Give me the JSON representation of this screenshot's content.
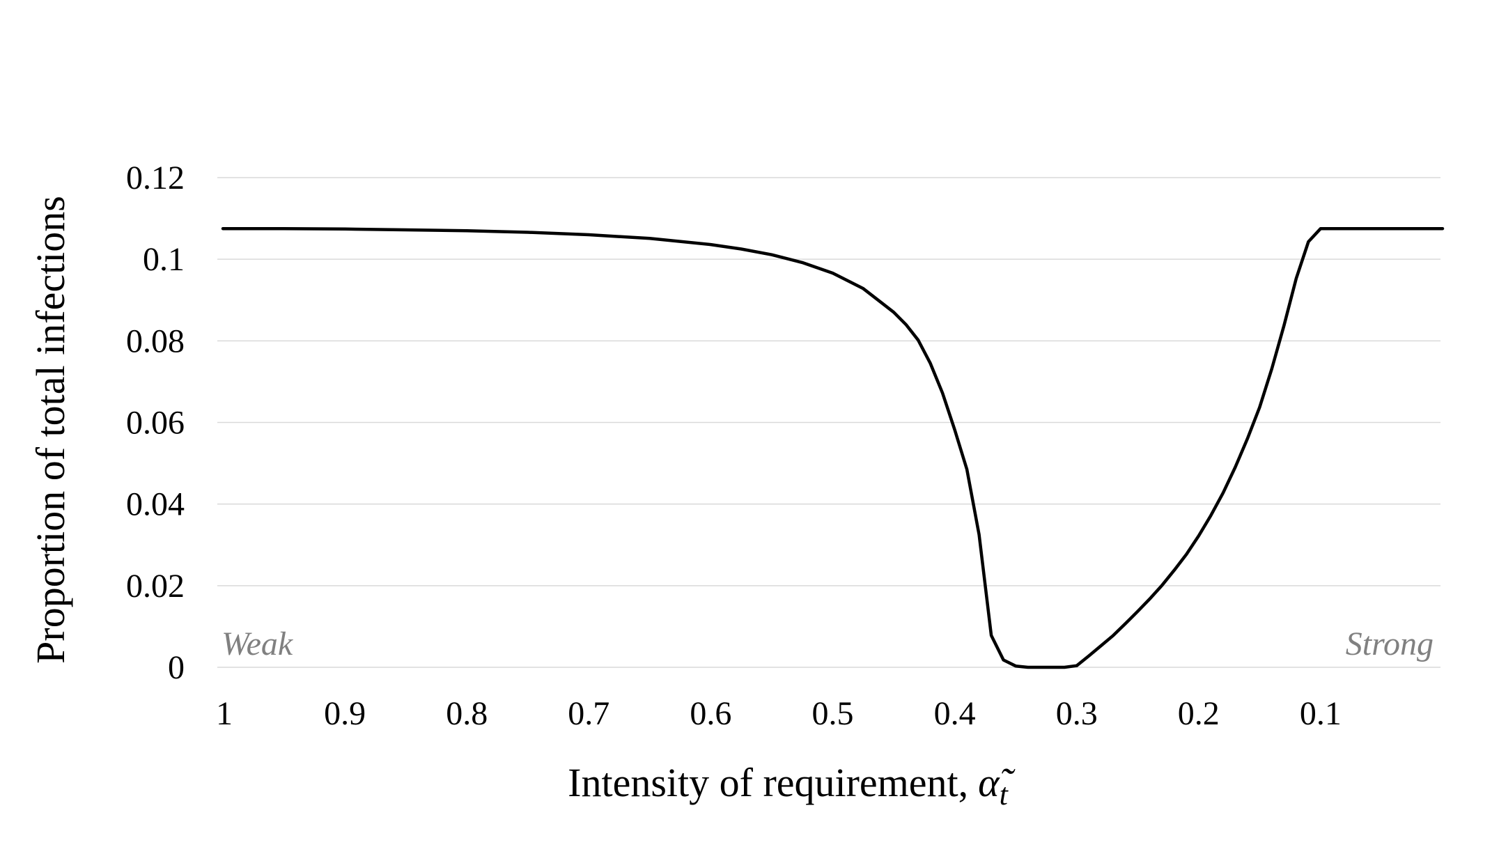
{
  "chart_data": {
    "type": "line",
    "title": "",
    "xlabel": "Intensity of requirement,",
    "xlabel_symbol": "α̃",
    "xlabel_subscript": "t",
    "ylabel": "Proportion of total infections",
    "xlim": [
      1.0,
      0.0
    ],
    "ylim": [
      0,
      0.12
    ],
    "x_reversed": true,
    "grid": true,
    "legend": "none",
    "x_tick_labels": [
      "1",
      "0.9",
      "0.8",
      "0.7",
      "0.6",
      "0.5",
      "0.4",
      "0.3",
      "0.2",
      "0.1"
    ],
    "x_tick_values": [
      1.0,
      0.9,
      0.8,
      0.7,
      0.6,
      0.5,
      0.4,
      0.3,
      0.2,
      0.1
    ],
    "y_tick_labels": [
      "0",
      "0.02",
      "0.04",
      "0.06",
      "0.08",
      "0.1",
      "0.12"
    ],
    "y_tick_values": [
      0,
      0.02,
      0.04,
      0.06,
      0.08,
      0.1,
      0.12
    ],
    "annotations": [
      {
        "text": "Weak",
        "position": "bottom-left"
      },
      {
        "text": "Strong",
        "position": "bottom-right"
      }
    ],
    "colors": {
      "line": "#000000",
      "grid": "#d9d9d9",
      "annotation": "#808080",
      "text": "#000000"
    },
    "series": [
      {
        "x": [
          1.0,
          0.98,
          0.95,
          0.9,
          0.85,
          0.8,
          0.75,
          0.7,
          0.65,
          0.6,
          0.575,
          0.55,
          0.525,
          0.5,
          0.475,
          0.45,
          0.44,
          0.43,
          0.42,
          0.41,
          0.4,
          0.39,
          0.38,
          0.37,
          0.36,
          0.35,
          0.34,
          0.33,
          0.32,
          0.31,
          0.3,
          0.29,
          0.28,
          0.27,
          0.26,
          0.25,
          0.24,
          0.23,
          0.22,
          0.21,
          0.2,
          0.19,
          0.18,
          0.17,
          0.16,
          0.15,
          0.14,
          0.13,
          0.12,
          0.11,
          0.1,
          0.09,
          0.05,
          0.0
        ],
        "y": [
          0.1075,
          0.1075,
          0.1075,
          0.1074,
          0.1072,
          0.107,
          0.1066,
          0.106,
          0.1051,
          0.1036,
          0.1025,
          0.1011,
          0.0992,
          0.0966,
          0.0928,
          0.087,
          0.084,
          0.0802,
          0.0745,
          0.0672,
          0.0582,
          0.0485,
          0.0325,
          0.0078,
          0.0018,
          0.0003,
          0.0,
          0.0,
          0.0,
          0.0,
          0.0004,
          0.0028,
          0.0053,
          0.0078,
          0.0107,
          0.0137,
          0.0168,
          0.0201,
          0.0238,
          0.0277,
          0.0322,
          0.0372,
          0.0427,
          0.049,
          0.056,
          0.0637,
          0.0732,
          0.0838,
          0.0953,
          0.1043,
          0.1075,
          0.1075,
          0.1075,
          0.1075
        ]
      }
    ]
  }
}
